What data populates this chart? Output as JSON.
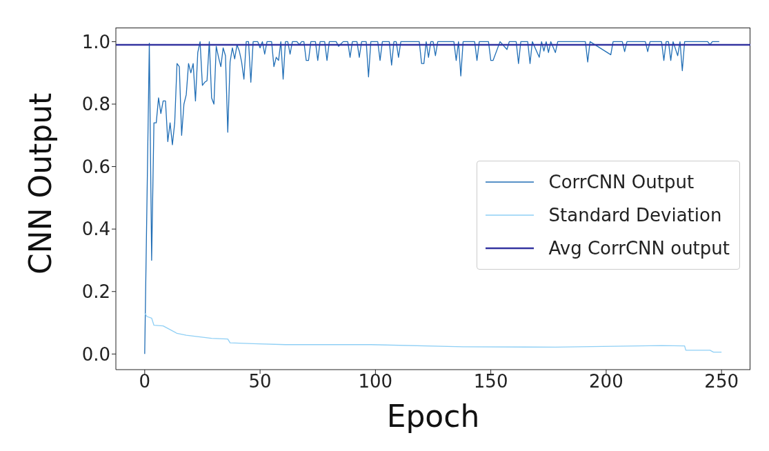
{
  "chart_data": {
    "type": "line",
    "xlabel": "Epoch",
    "ylabel": "CNN Output",
    "xlim": [
      -12.5,
      262.5
    ],
    "xticks": [
      0,
      50,
      100,
      150,
      200,
      250
    ],
    "ylim": [
      -0.05,
      1.045
    ],
    "yticks": [
      {
        "value": 0,
        "label": "0.0"
      },
      {
        "value": 0.2,
        "label": "0.2"
      },
      {
        "value": 0.4,
        "label": "0.4"
      },
      {
        "value": 0.6,
        "label": "0.6"
      },
      {
        "value": 0.8,
        "label": "0.8"
      },
      {
        "value": 1,
        "label": "1.0"
      }
    ],
    "grid": false,
    "legend": "right",
    "marker": "none",
    "line_style": "solid",
    "series": [
      {
        "name": "CorrCNN Output",
        "color": "#1f6db5",
        "x": [
          0,
          2,
          3,
          4,
          5,
          6,
          7,
          8,
          9,
          10,
          11,
          12,
          13,
          14,
          15,
          16,
          17,
          18,
          19,
          20,
          21,
          22,
          23,
          24,
          25,
          26,
          27,
          28,
          29,
          30,
          31,
          32,
          33,
          34,
          35,
          36,
          37,
          38,
          39,
          40,
          41,
          42,
          43,
          44,
          45,
          46,
          47,
          48,
          49,
          50,
          51,
          52,
          53,
          54,
          55,
          56,
          57,
          58,
          59,
          60,
          61,
          62,
          63,
          64,
          65,
          66,
          67,
          68,
          69,
          70,
          71,
          72,
          74,
          75,
          76,
          78,
          79,
          80,
          83,
          84,
          86,
          88,
          89,
          90,
          92,
          93,
          94,
          96,
          97,
          98,
          101,
          102,
          103,
          106,
          107,
          108,
          109,
          110,
          111,
          119,
          120,
          121,
          122,
          123,
          124,
          125,
          126,
          127,
          134,
          135,
          136,
          137,
          138,
          143,
          144,
          145,
          149,
          150,
          151,
          154,
          157,
          158,
          161,
          162,
          163,
          166,
          167,
          168,
          171,
          172,
          173,
          174,
          175,
          176,
          178,
          179,
          191,
          192,
          193,
          202,
          203,
          207,
          208,
          209,
          217,
          218,
          219,
          224,
          225,
          226,
          227,
          228,
          229,
          231,
          232,
          233,
          234,
          244,
          245,
          246,
          249
        ],
        "values": [
          0,
          0.995,
          0.3,
          0.74,
          0.74,
          0.82,
          0.77,
          0.81,
          0.81,
          0.68,
          0.74,
          0.67,
          0.74,
          0.93,
          0.92,
          0.7,
          0.8,
          0.83,
          0.93,
          0.9,
          0.93,
          0.81,
          0.965,
          1.0,
          0.86,
          0.87,
          0.875,
          1.0,
          0.82,
          0.8,
          0.985,
          0.95,
          0.92,
          0.98,
          0.955,
          0.71,
          0.935,
          0.98,
          0.945,
          0.99,
          0.97,
          0.935,
          0.88,
          1.0,
          1.0,
          0.87,
          1.0,
          1.0,
          1.0,
          0.98,
          1.0,
          0.96,
          1.0,
          1.0,
          1.0,
          0.92,
          0.95,
          0.94,
          1.0,
          0.88,
          1.0,
          1.0,
          0.96,
          1.0,
          1.0,
          1.0,
          0.99,
          1.0,
          1.0,
          0.94,
          0.94,
          1.0,
          1.0,
          0.94,
          1.0,
          1.0,
          0.94,
          1.0,
          1.0,
          0.985,
          1.0,
          1.0,
          0.95,
          1.0,
          1.0,
          0.95,
          1.0,
          1.0,
          0.887,
          1.0,
          1.0,
          0.94,
          1.0,
          1.0,
          0.925,
          1.0,
          1.0,
          0.95,
          1.0,
          1.0,
          0.93,
          0.93,
          1.0,
          0.95,
          1.0,
          1.0,
          0.955,
          1.0,
          1.0,
          0.94,
          1.0,
          0.89,
          1.0,
          1.0,
          0.94,
          1.0,
          1.0,
          0.94,
          0.94,
          1.0,
          0.975,
          1.0,
          1.0,
          0.93,
          1.0,
          1.0,
          0.93,
          1.0,
          0.95,
          1.0,
          0.97,
          1.0,
          0.965,
          1.0,
          0.965,
          1.0,
          1.0,
          0.935,
          1.0,
          0.958,
          1.0,
          1.0,
          0.968,
          1.0,
          1.0,
          0.968,
          1.0,
          1.0,
          0.94,
          1.0,
          1.0,
          0.94,
          1.0,
          0.955,
          1.0,
          0.907,
          1.0,
          1.0,
          0.99,
          1.0,
          1.0
        ]
      },
      {
        "name": "Standard Deviation",
        "color": "#8ecff5",
        "x": [
          0,
          1,
          3,
          4,
          8,
          14,
          18,
          29,
          36,
          37,
          47,
          61,
          98,
          138,
          178,
          224,
          234,
          234.5,
          245,
          246.5,
          250
        ],
        "values": [
          0.13,
          0.12,
          0.115,
          0.092,
          0.09,
          0.066,
          0.06,
          0.05,
          0.048,
          0.036,
          0.033,
          0.03,
          0.03,
          0.023,
          0.022,
          0.027,
          0.026,
          0.012,
          0.012,
          0.006,
          0.006
        ]
      }
    ],
    "ref_lines": [
      {
        "axis": "y",
        "value": 0.99,
        "label": "Avg CorrCNN output",
        "color": "#3333a0"
      }
    ]
  }
}
